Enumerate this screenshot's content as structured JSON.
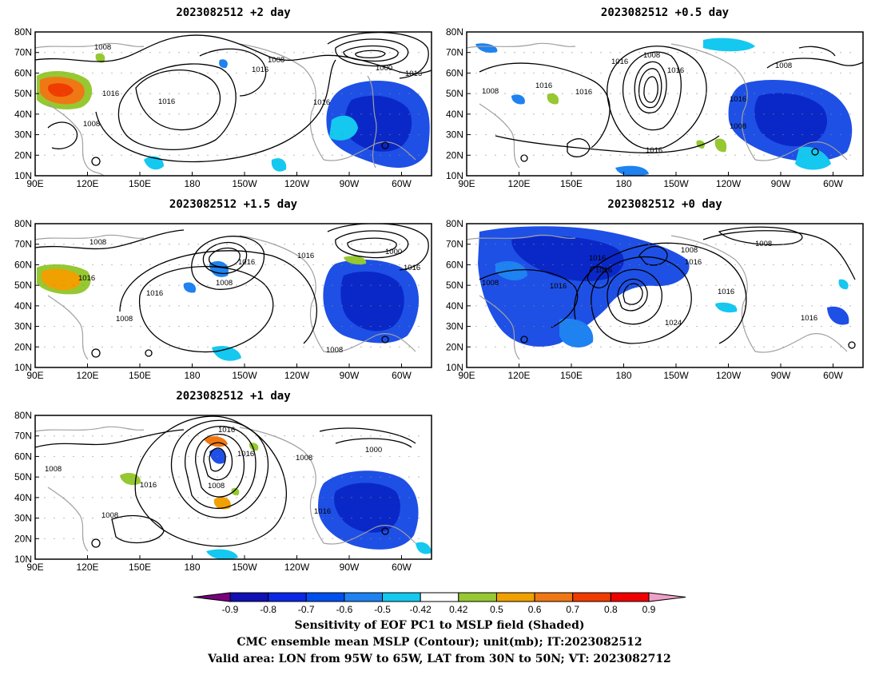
{
  "panels": [
    {
      "id": "p2",
      "title": "2023082512  +2 day",
      "contour_labels": [
        "1008",
        "1008",
        "1016",
        "1000",
        "1016",
        "1016",
        "1016",
        "1016",
        "1008"
      ]
    },
    {
      "id": "p05",
      "title": "2023082512  +0.5 day",
      "contour_labels": [
        "1016",
        "1008",
        "1016",
        "1008",
        "1016",
        "1016",
        "1008",
        "1016",
        "1008",
        "1016"
      ]
    },
    {
      "id": "p15",
      "title": "2023082512  +1.5 day",
      "contour_labels": [
        "1008",
        "1016",
        "1008",
        "1016",
        "1000",
        "1016",
        "1016",
        "1016",
        "1008",
        "1008"
      ]
    },
    {
      "id": "p0",
      "title": "2023082512  +0 day",
      "contour_labels": [
        "1008",
        "1016",
        "1008",
        "1016",
        "1016",
        "1016",
        "1024",
        "1008",
        "1016",
        "1016"
      ]
    },
    {
      "id": "p1",
      "title": "2023082512  +1 day",
      "contour_labels": [
        "1016",
        "1016",
        "1008",
        "1000",
        "1008",
        "1016",
        "1008",
        "1008",
        "1016"
      ]
    }
  ],
  "axes": {
    "lat_ticks": [
      "80N",
      "70N",
      "60N",
      "50N",
      "40N",
      "30N",
      "20N",
      "10N"
    ],
    "lon_ticks": [
      "90E",
      "120E",
      "150E",
      "180",
      "150W",
      "120W",
      "90W",
      "60W"
    ]
  },
  "colorbar": {
    "labels": [
      "-0.9",
      "-0.8",
      "-0.7",
      "-0.6",
      "-0.5",
      "-0.42",
      "0.42",
      "0.5",
      "0.6",
      "0.7",
      "0.8",
      "0.9"
    ],
    "colors": [
      "#7a0080",
      "#1010b4",
      "#0a28e6",
      "#0050f0",
      "#1e82f0",
      "#14c8f0",
      "#ffffff",
      "#96c832",
      "#f0a000",
      "#f07814",
      "#f03c00",
      "#f00000",
      "#f0a0c8"
    ]
  },
  "caption": {
    "line1": "Sensitivity of EOF PC1 to MSLP field (Shaded)",
    "line2": "CMC ensemble mean MSLP (Contour); unit(mb); IT:2023082512",
    "line3": "Valid area: LON from 95W to 65W, LAT from 30N to 50N; VT: 2023082712"
  }
}
